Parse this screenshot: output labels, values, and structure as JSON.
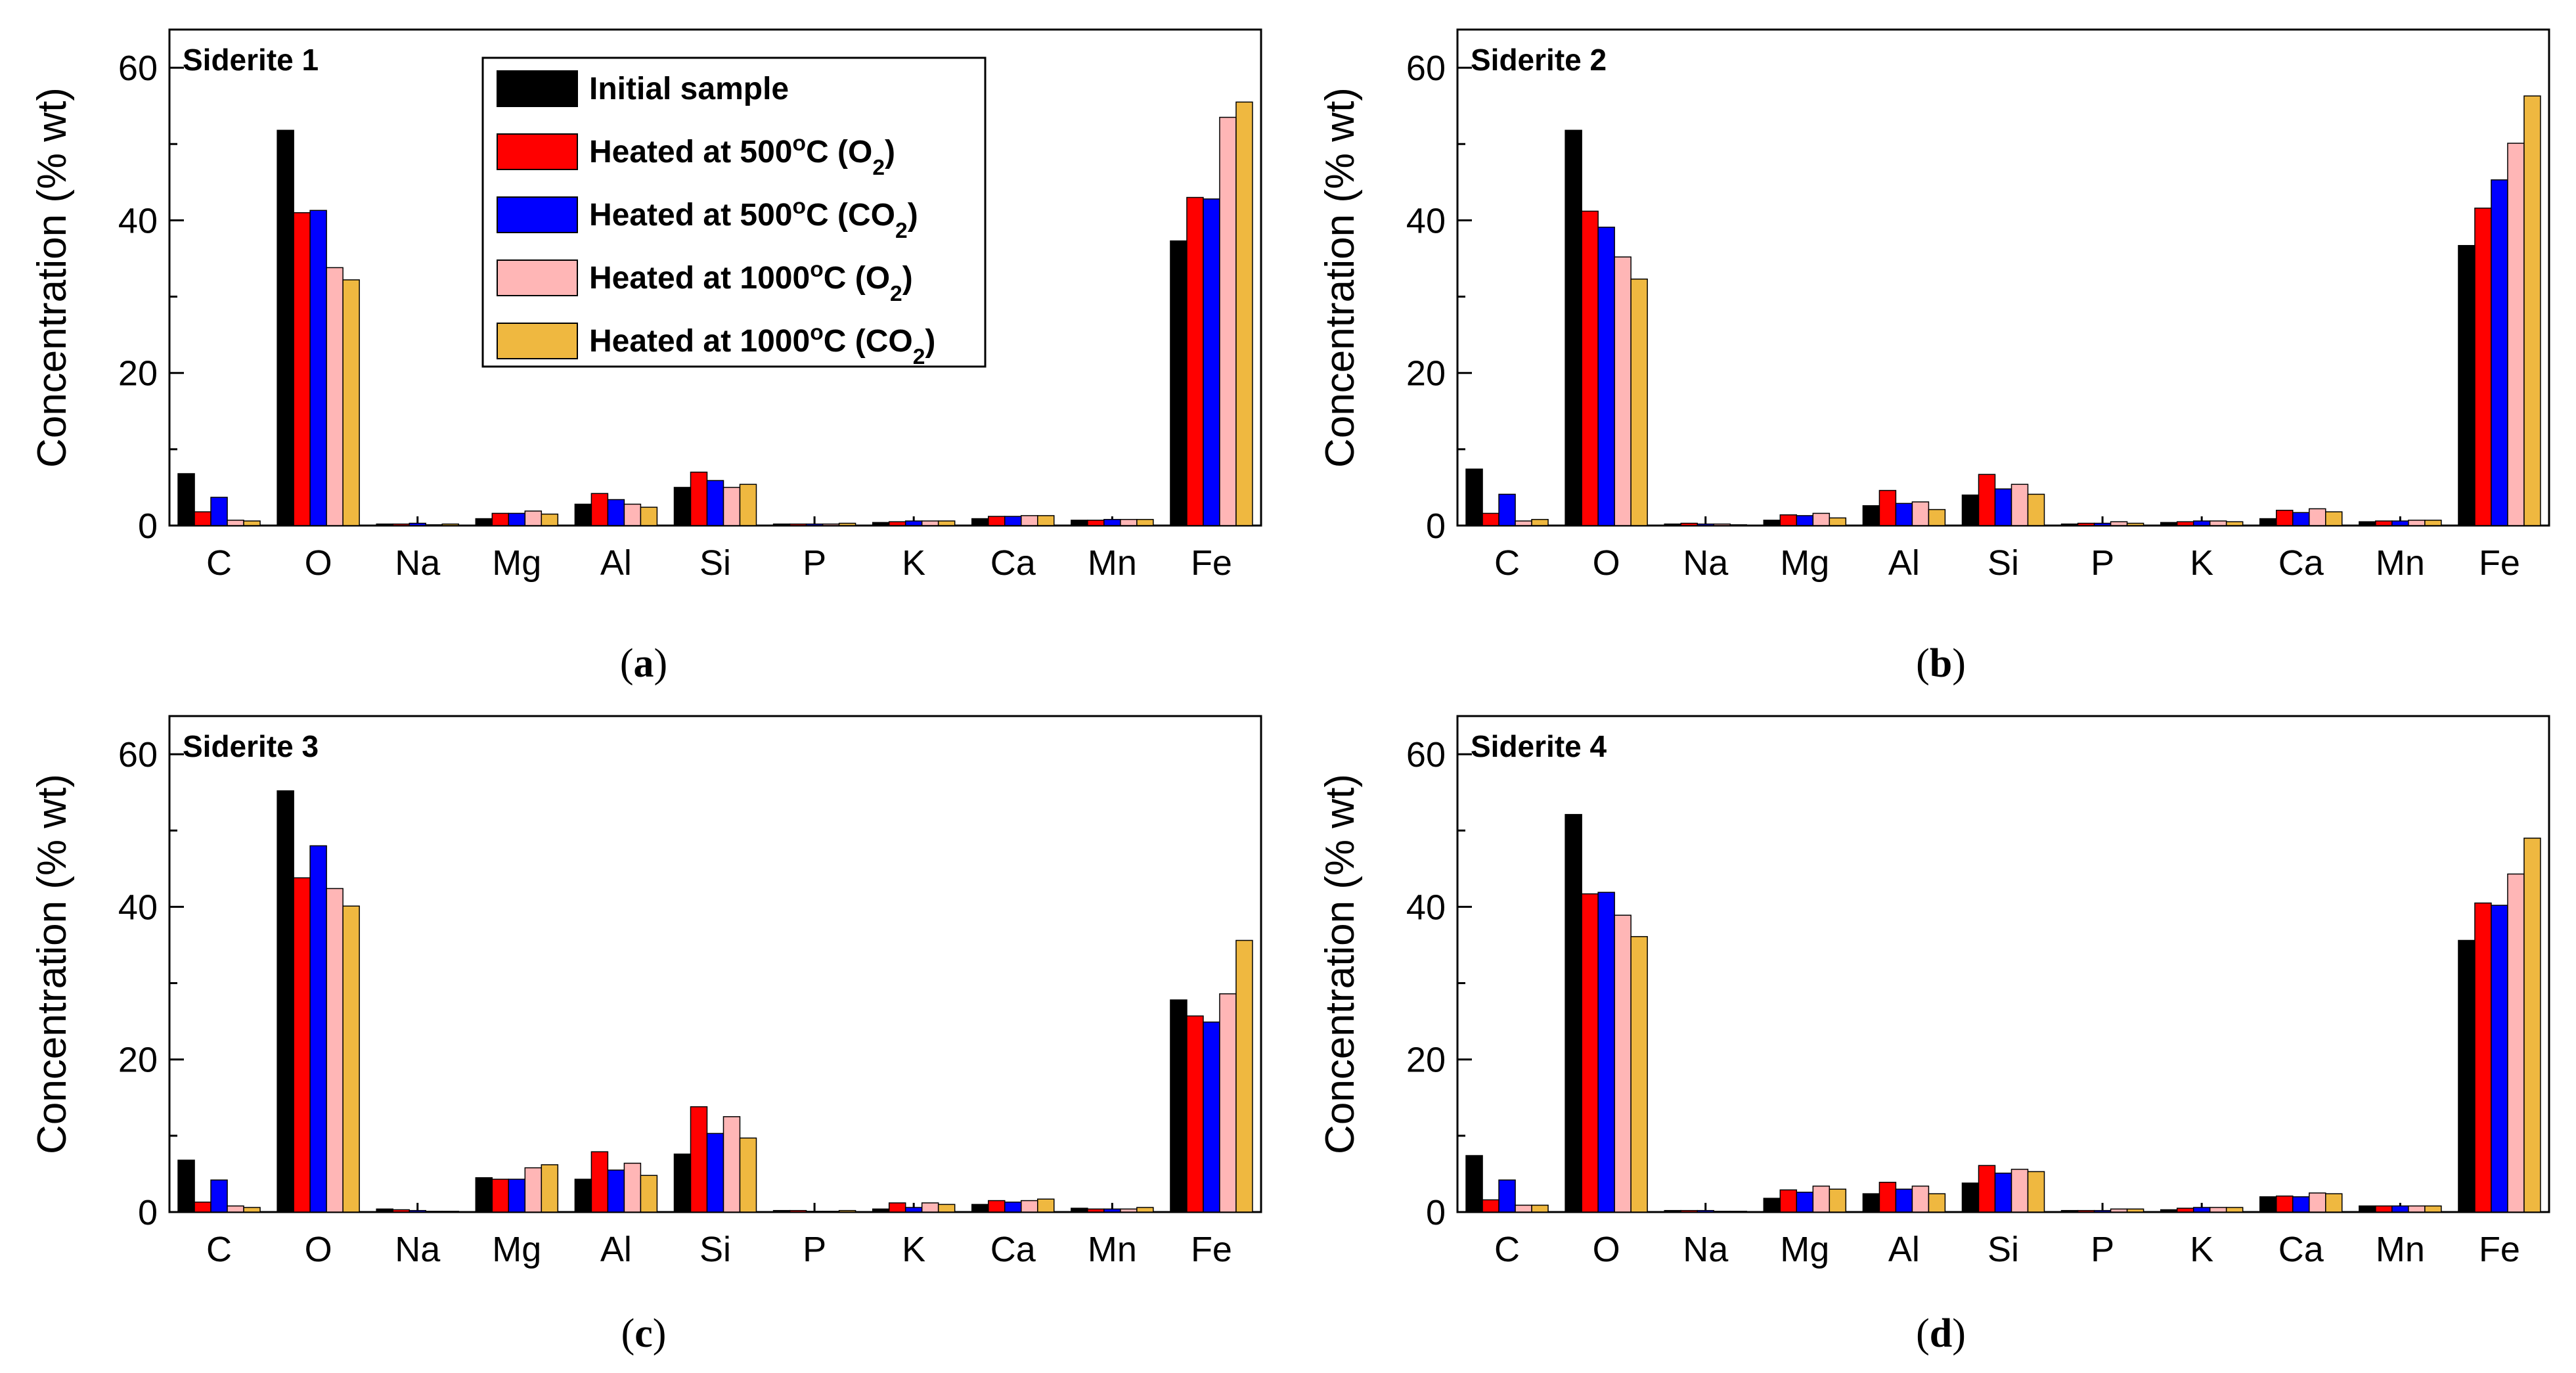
{
  "legend": {
    "entries": [
      {
        "name": "Initial sample",
        "color": "#000000"
      },
      {
        "name": "Heated at 500°C (O2)",
        "color": "#ff0000"
      },
      {
        "name": "Heated at 500°C (CO2)",
        "color": "#0000ff"
      },
      {
        "name": "Heated at 1000°C (O2)",
        "color": "#ffb6b6"
      },
      {
        "name": "Heated at 1000°C (CO2)",
        "color": "#efb840"
      }
    ]
  },
  "chart_data": [
    {
      "type": "bar",
      "title": "Siderite 1",
      "caption": "a",
      "ylabel": "Concentration (% wt)",
      "ylim": [
        0,
        65
      ],
      "yticks": [
        "0",
        "20",
        "40",
        "60"
      ],
      "categories": [
        "C",
        "O",
        "Na",
        "Mg",
        "Al",
        "Si",
        "P",
        "K",
        "Ca",
        "Mn",
        "Fe"
      ],
      "series": [
        {
          "name": "Initial sample",
          "values": [
            6.8,
            51.8,
            0.2,
            0.9,
            2.8,
            5.0,
            0.2,
            0.4,
            0.9,
            0.7,
            37.3
          ]
        },
        {
          "name": "Heated at 500°C (O2)",
          "values": [
            1.8,
            41.0,
            0.2,
            1.6,
            4.2,
            7.0,
            0.2,
            0.5,
            1.2,
            0.7,
            43.0
          ]
        },
        {
          "name": "Heated at 500°C (CO2)",
          "values": [
            3.7,
            41.3,
            0.3,
            1.6,
            3.4,
            5.9,
            0.2,
            0.6,
            1.2,
            0.8,
            42.8
          ]
        },
        {
          "name": "Heated at 1000°C (O2)",
          "values": [
            0.7,
            33.8,
            0.1,
            1.9,
            2.8,
            5.0,
            0.2,
            0.6,
            1.3,
            0.8,
            53.5
          ]
        },
        {
          "name": "Heated at 1000°C (CO2)",
          "values": [
            0.6,
            32.2,
            0.2,
            1.5,
            2.4,
            5.4,
            0.3,
            0.6,
            1.3,
            0.8,
            55.5
          ]
        }
      ]
    },
    {
      "type": "bar",
      "title": "Siderite 2",
      "caption": "b",
      "ylabel": "Concentration (% wt)",
      "ylim": [
        0,
        65
      ],
      "yticks": [
        "0",
        "20",
        "40",
        "60"
      ],
      "categories": [
        "C",
        "O",
        "Na",
        "Mg",
        "Al",
        "Si",
        "P",
        "K",
        "Ca",
        "Mn",
        "Fe"
      ],
      "series": [
        {
          "name": "Initial sample",
          "values": [
            7.4,
            51.8,
            0.2,
            0.7,
            2.6,
            4.0,
            0.2,
            0.4,
            0.9,
            0.5,
            36.7
          ]
        },
        {
          "name": "Heated at 500°C (O2)",
          "values": [
            1.6,
            41.2,
            0.3,
            1.4,
            4.6,
            6.7,
            0.3,
            0.5,
            2.0,
            0.6,
            41.6
          ]
        },
        {
          "name": "Heated at 500°C (CO2)",
          "values": [
            4.1,
            39.1,
            0.2,
            1.3,
            2.9,
            4.8,
            0.3,
            0.6,
            1.7,
            0.6,
            45.3
          ]
        },
        {
          "name": "Heated at 1000°C (O2)",
          "values": [
            0.6,
            35.2,
            0.2,
            1.6,
            3.1,
            5.4,
            0.5,
            0.6,
            2.2,
            0.7,
            50.1
          ]
        },
        {
          "name": "Heated at 1000°C (CO2)",
          "values": [
            0.8,
            32.3,
            0.1,
            1.0,
            2.1,
            4.1,
            0.3,
            0.5,
            1.8,
            0.7,
            56.3
          ]
        }
      ]
    },
    {
      "type": "bar",
      "title": "Siderite 3",
      "caption": "c",
      "ylabel": "Concentration (% wt)",
      "ylim": [
        0,
        65
      ],
      "yticks": [
        "0",
        "20",
        "40",
        "60"
      ],
      "categories": [
        "C",
        "O",
        "Na",
        "Mg",
        "Al",
        "Si",
        "P",
        "K",
        "Ca",
        "Mn",
        "Fe"
      ],
      "series": [
        {
          "name": "Initial sample",
          "values": [
            6.8,
            55.2,
            0.4,
            4.5,
            4.3,
            7.6,
            0.2,
            0.4,
            1.0,
            0.5,
            27.8
          ]
        },
        {
          "name": "Heated at 500°C (O2)",
          "values": [
            1.3,
            43.8,
            0.3,
            4.3,
            7.9,
            13.8,
            0.2,
            1.2,
            1.5,
            0.4,
            25.7
          ]
        },
        {
          "name": "Heated at 500°C (CO2)",
          "values": [
            4.2,
            48.0,
            0.2,
            4.3,
            5.5,
            10.3,
            0.1,
            0.6,
            1.3,
            0.4,
            24.9
          ]
        },
        {
          "name": "Heated at 1000°C (O2)",
          "values": [
            0.8,
            42.4,
            0.1,
            5.8,
            6.4,
            12.5,
            0.1,
            1.2,
            1.5,
            0.4,
            28.6
          ]
        },
        {
          "name": "Heated at 1000°C (CO2)",
          "values": [
            0.6,
            40.1,
            0.1,
            6.2,
            4.8,
            9.7,
            0.2,
            1.0,
            1.7,
            0.6,
            35.6
          ]
        }
      ]
    },
    {
      "type": "bar",
      "title": "Siderite 4",
      "caption": "d",
      "ylabel": "Concentration (% wt)",
      "ylim": [
        0,
        65
      ],
      "yticks": [
        "0",
        "20",
        "40",
        "60"
      ],
      "categories": [
        "C",
        "O",
        "Na",
        "Mg",
        "Al",
        "Si",
        "P",
        "K",
        "Ca",
        "Mn",
        "Fe"
      ],
      "series": [
        {
          "name": "Initial sample",
          "values": [
            7.4,
            52.1,
            0.2,
            1.8,
            2.4,
            3.8,
            0.2,
            0.3,
            2.0,
            0.8,
            35.6
          ]
        },
        {
          "name": "Heated at 500°C (O2)",
          "values": [
            1.6,
            41.7,
            0.2,
            2.9,
            3.9,
            6.1,
            0.2,
            0.5,
            2.1,
            0.8,
            40.5
          ]
        },
        {
          "name": "Heated at 500°C (CO2)",
          "values": [
            4.2,
            41.9,
            0.2,
            2.6,
            3.0,
            5.1,
            0.2,
            0.6,
            2.0,
            0.8,
            40.2
          ]
        },
        {
          "name": "Heated at 1000°C (O2)",
          "values": [
            0.9,
            38.9,
            0.1,
            3.4,
            3.4,
            5.6,
            0.4,
            0.6,
            2.5,
            0.8,
            44.3
          ]
        },
        {
          "name": "Heated at 1000°C (CO2)",
          "values": [
            0.9,
            36.1,
            0.1,
            3.0,
            2.4,
            5.3,
            0.4,
            0.6,
            2.4,
            0.8,
            49.0
          ]
        }
      ]
    }
  ]
}
